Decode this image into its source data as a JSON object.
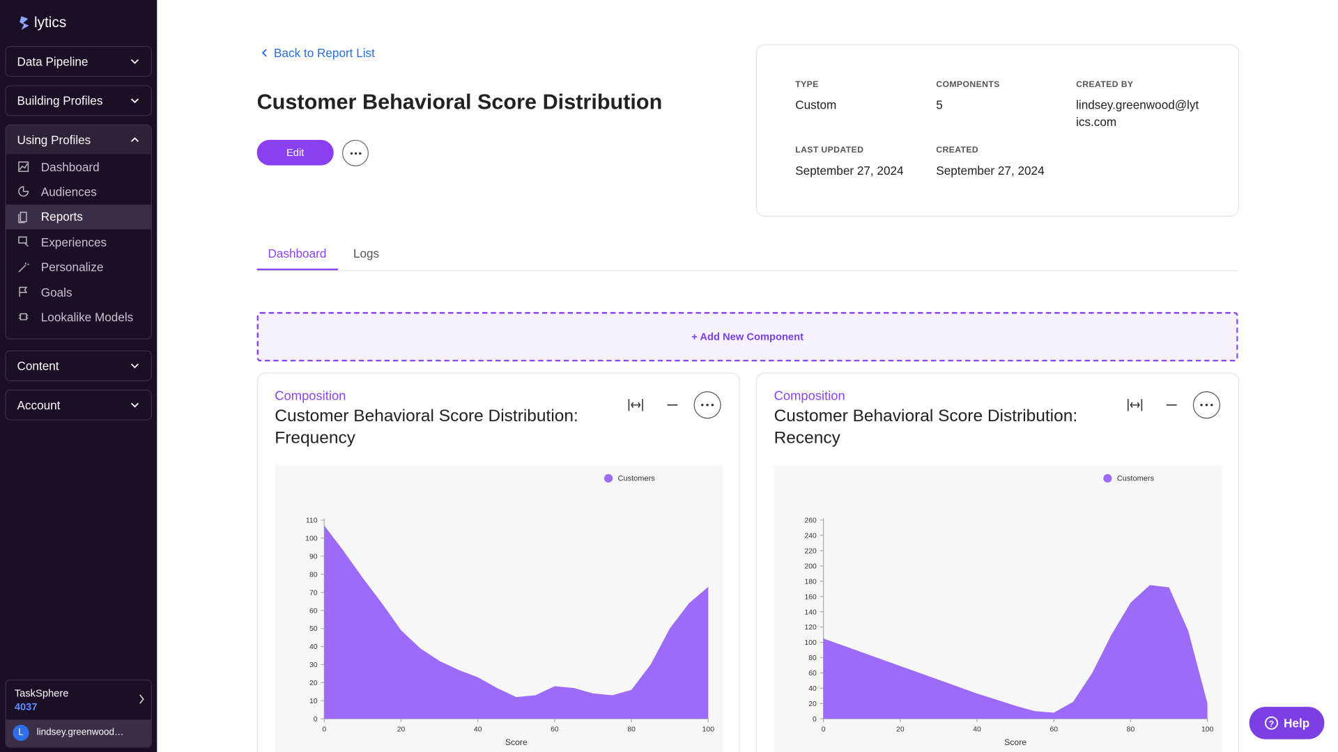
{
  "sidebar": {
    "brand": "lytics",
    "sections": [
      {
        "label": "Data Pipeline"
      },
      {
        "label": "Building Profiles"
      },
      {
        "label": "Using Profiles",
        "items": [
          "Dashboard",
          "Audiences",
          "Reports",
          "Experiences",
          "Personalize",
          "Goals",
          "Lookalike Models"
        ]
      },
      {
        "label": "Content"
      },
      {
        "label": "Account"
      }
    ],
    "workspace": {
      "name": "TaskSphere",
      "id": "4037"
    },
    "user": {
      "initial": "L",
      "name": "lindsey.greenwood…"
    }
  },
  "header": {
    "back_link": "Back to Report List",
    "title": "Customer Behavioral Score Distribution",
    "edit_button": "Edit"
  },
  "meta": [
    {
      "label": "TYPE",
      "value": "Custom"
    },
    {
      "label": "COMPONENTS",
      "value": "5"
    },
    {
      "label": "CREATED BY",
      "value": "lindsey.greenwood@lytics.com"
    },
    {
      "label": "LAST UPDATED",
      "value": "September 27, 2024"
    },
    {
      "label": "CREATED",
      "value": "September 27, 2024"
    }
  ],
  "tabs": [
    "Dashboard",
    "Logs"
  ],
  "add_component": "+ Add New Component",
  "components": [
    {
      "kind": "Composition",
      "title": "Customer Behavioral Score Distribution: Frequency",
      "chart_data": {
        "type": "area",
        "x": [
          0,
          5,
          10,
          15,
          20,
          25,
          30,
          35,
          40,
          45,
          50,
          55,
          60,
          65,
          70,
          75,
          80,
          85,
          90,
          95,
          100
        ],
        "series": [
          {
            "name": "Customers",
            "color": "#9d6bfa",
            "values": [
              107,
              93,
              78,
              64,
              49,
              39,
              32,
              27,
              23,
              17,
              12,
              13,
              18,
              17,
              14,
              13,
              16,
              30,
              50,
              64,
              73
            ]
          }
        ],
        "xlim": [
          0,
          100
        ],
        "ylim": [
          0,
          110
        ],
        "xticks": [
          0,
          20,
          40,
          60,
          80,
          100
        ],
        "yticks": [
          0,
          10,
          20,
          30,
          40,
          50,
          60,
          70,
          80,
          90,
          100,
          110
        ],
        "x_label": "Score",
        "legend": "top-right"
      }
    },
    {
      "kind": "Composition",
      "title": "Customer Behavioral Score Distribution: Recency",
      "chart_data": {
        "type": "area",
        "x": [
          0,
          5,
          10,
          15,
          20,
          25,
          30,
          35,
          40,
          45,
          50,
          55,
          60,
          65,
          70,
          75,
          80,
          85,
          90,
          95,
          100
        ],
        "series": [
          {
            "name": "Customers",
            "color": "#9d6bfa",
            "values": [
              105,
              96,
              87,
              78,
              69,
              60,
              51,
              42,
              33,
              25,
              17,
              10,
              8,
              22,
              60,
              110,
              152,
              175,
              172,
              115,
              20
            ]
          }
        ],
        "xlim": [
          0,
          100
        ],
        "ylim": [
          0,
          260
        ],
        "xticks": [
          0,
          20,
          40,
          60,
          80,
          100
        ],
        "yticks": [
          0,
          20,
          40,
          60,
          80,
          100,
          120,
          140,
          160,
          180,
          200,
          220,
          240,
          260
        ],
        "x_label": "Score",
        "legend": "top-right"
      }
    }
  ],
  "help": "Help"
}
